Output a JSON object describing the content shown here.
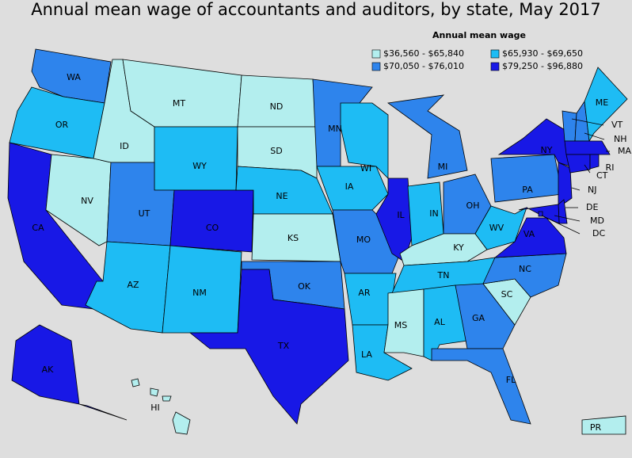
{
  "title": "Annual mean wage of accountants and auditors, by state, May 2017",
  "legend": {
    "title": "Annual mean wage",
    "entries": [
      {
        "label": "$36,560 - $65,840",
        "color": "#b3eeee"
      },
      {
        "label": "$65,930 - $69,650",
        "color": "#1ebcf4"
      },
      {
        "label": "$70,050 - $76,010",
        "color": "#2e84ec"
      },
      {
        "label": "$79,250 - $96,880",
        "color": "#1818e6"
      }
    ]
  },
  "states": [
    {
      "label": "WA",
      "bin": 2
    },
    {
      "label": "OR",
      "bin": 1
    },
    {
      "label": "CA",
      "bin": 3
    },
    {
      "label": "NV",
      "bin": 0
    },
    {
      "label": "ID",
      "bin": 0
    },
    {
      "label": "MT",
      "bin": 0
    },
    {
      "label": "WY",
      "bin": 1
    },
    {
      "label": "UT",
      "bin": 2
    },
    {
      "label": "CO",
      "bin": 3
    },
    {
      "label": "AZ",
      "bin": 1
    },
    {
      "label": "NM",
      "bin": 1
    },
    {
      "label": "ND",
      "bin": 0
    },
    {
      "label": "SD",
      "bin": 0
    },
    {
      "label": "NE",
      "bin": 1
    },
    {
      "label": "KS",
      "bin": 0
    },
    {
      "label": "OK",
      "bin": 2
    },
    {
      "label": "TX",
      "bin": 3
    },
    {
      "label": "MN",
      "bin": 2
    },
    {
      "label": "IA",
      "bin": 1
    },
    {
      "label": "MO",
      "bin": 2
    },
    {
      "label": "AR",
      "bin": 1
    },
    {
      "label": "LA",
      "bin": 1
    },
    {
      "label": "WI",
      "bin": 1
    },
    {
      "label": "IL",
      "bin": 3
    },
    {
      "label": "MI",
      "bin": 2
    },
    {
      "label": "IN",
      "bin": 1
    },
    {
      "label": "OH",
      "bin": 2
    },
    {
      "label": "KY",
      "bin": 0
    },
    {
      "label": "TN",
      "bin": 1
    },
    {
      "label": "MS",
      "bin": 0
    },
    {
      "label": "AL",
      "bin": 1
    },
    {
      "label": "GA",
      "bin": 2
    },
    {
      "label": "FL",
      "bin": 2
    },
    {
      "label": "SC",
      "bin": 0
    },
    {
      "label": "NC",
      "bin": 2
    },
    {
      "label": "VA",
      "bin": 3
    },
    {
      "label": "WV",
      "bin": 1
    },
    {
      "label": "PA",
      "bin": 2
    },
    {
      "label": "NY",
      "bin": 3
    },
    {
      "label": "NJ",
      "bin": 3
    },
    {
      "label": "DE",
      "bin": 3
    },
    {
      "label": "MD",
      "bin": 3
    },
    {
      "label": "DC",
      "bin": 3
    },
    {
      "label": "VT",
      "bin": 2
    },
    {
      "label": "NH",
      "bin": 2
    },
    {
      "label": "ME",
      "bin": 1
    },
    {
      "label": "MA",
      "bin": 3
    },
    {
      "label": "CT",
      "bin": 3
    },
    {
      "label": "RI",
      "bin": 3
    },
    {
      "label": "AK",
      "bin": 3
    },
    {
      "label": "HI",
      "bin": 0
    },
    {
      "label": "PR",
      "bin": 0
    }
  ]
}
